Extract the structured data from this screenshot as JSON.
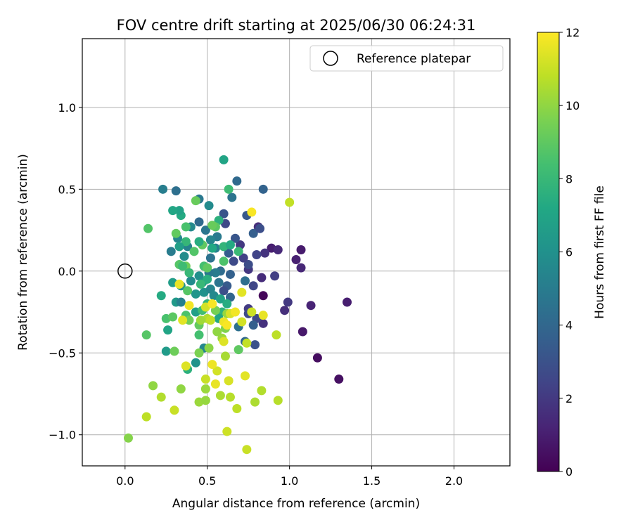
{
  "chart_data": {
    "type": "scatter",
    "title": "FOV centre drift starting at 2025/06/30 06:24:31",
    "xlabel": "Angular distance from reference (arcmin)",
    "ylabel": "Rotation from reference (arcmin)",
    "xlim": [
      -0.26,
      2.34
    ],
    "ylim": [
      -1.19,
      1.42
    ],
    "xticks": [
      0.0,
      0.5,
      1.0,
      1.5,
      2.0
    ],
    "yticks": [
      -1.0,
      -0.5,
      0.0,
      0.5,
      1.0
    ],
    "xtick_labels": [
      "0.0",
      "0.5",
      "1.0",
      "1.5",
      "2.0"
    ],
    "ytick_labels": [
      "−1.0",
      "−0.5",
      "0.0",
      "0.5",
      "1.0"
    ],
    "grid": true,
    "legend": {
      "placement": "upper right",
      "entries": [
        "Reference platepar"
      ]
    },
    "reference_point": {
      "x": 0.0,
      "y": 0.0
    },
    "colorbar": {
      "label": "Hours from first FF file",
      "range": [
        0,
        12
      ],
      "ticks": [
        0,
        2,
        4,
        6,
        8,
        10,
        12
      ],
      "tick_labels": [
        "0",
        "2",
        "4",
        "6",
        "8",
        "10",
        "12"
      ],
      "colormap": "viridis"
    },
    "points": [
      {
        "x": 0.84,
        "y": -0.15,
        "h": 0.2
      },
      {
        "x": 1.17,
        "y": -0.53,
        "h": 0.4
      },
      {
        "x": 1.3,
        "y": -0.66,
        "h": 0.5
      },
      {
        "x": 1.35,
        "y": -0.19,
        "h": 1.0
      },
      {
        "x": 1.08,
        "y": -0.37,
        "h": 0.8
      },
      {
        "x": 1.13,
        "y": -0.21,
        "h": 1.2
      },
      {
        "x": 1.07,
        "y": 0.13,
        "h": 0.9
      },
      {
        "x": 1.04,
        "y": 0.07,
        "h": 1.1
      },
      {
        "x": 1.07,
        "y": 0.02,
        "h": 1.3
      },
      {
        "x": 0.97,
        "y": -0.24,
        "h": 1.6
      },
      {
        "x": 0.99,
        "y": -0.19,
        "h": 2.0
      },
      {
        "x": 0.89,
        "y": 0.14,
        "h": 1.0
      },
      {
        "x": 0.93,
        "y": 0.13,
        "h": 1.4
      },
      {
        "x": 0.85,
        "y": 0.11,
        "h": 1.8
      },
      {
        "x": 0.83,
        "y": -0.04,
        "h": 1.5
      },
      {
        "x": 0.91,
        "y": -0.03,
        "h": 2.2
      },
      {
        "x": 0.81,
        "y": 0.27,
        "h": 1.6
      },
      {
        "x": 0.8,
        "y": 0.1,
        "h": 2.4
      },
      {
        "x": 0.75,
        "y": 0.01,
        "h": 1.9
      },
      {
        "x": 0.75,
        "y": -0.23,
        "h": 2.1
      },
      {
        "x": 0.84,
        "y": -0.32,
        "h": 1.7
      },
      {
        "x": 0.8,
        "y": -0.29,
        "h": 2.6
      },
      {
        "x": 0.79,
        "y": -0.45,
        "h": 3.0
      },
      {
        "x": 0.78,
        "y": -0.09,
        "h": 2.5
      },
      {
        "x": 0.75,
        "y": 0.04,
        "h": 2.8
      },
      {
        "x": 0.72,
        "y": 0.08,
        "h": 2.3
      },
      {
        "x": 0.7,
        "y": 0.16,
        "h": 2.0
      },
      {
        "x": 0.66,
        "y": 0.06,
        "h": 2.7
      },
      {
        "x": 0.67,
        "y": 0.2,
        "h": 3.2
      },
      {
        "x": 0.63,
        "y": 0.11,
        "h": 3.5
      },
      {
        "x": 0.61,
        "y": 0.29,
        "h": 2.6
      },
      {
        "x": 0.6,
        "y": 0.35,
        "h": 3.1
      },
      {
        "x": 0.74,
        "y": 0.34,
        "h": 3.3
      },
      {
        "x": 0.78,
        "y": 0.23,
        "h": 3.6
      },
      {
        "x": 0.82,
        "y": 0.26,
        "h": 2.9
      },
      {
        "x": 0.84,
        "y": 0.5,
        "h": 3.8
      },
      {
        "x": 0.68,
        "y": 0.55,
        "h": 4.1
      },
      {
        "x": 0.65,
        "y": 0.45,
        "h": 4.6
      },
      {
        "x": 0.64,
        "y": -0.02,
        "h": 3.7
      },
      {
        "x": 0.62,
        "y": -0.09,
        "h": 3.4
      },
      {
        "x": 0.6,
        "y": -0.12,
        "h": 2.9
      },
      {
        "x": 0.64,
        "y": -0.16,
        "h": 3.9
      },
      {
        "x": 0.73,
        "y": -0.06,
        "h": 4.3
      },
      {
        "x": 0.75,
        "y": -0.26,
        "h": 2.7
      },
      {
        "x": 0.78,
        "y": -0.33,
        "h": 3.6
      },
      {
        "x": 0.73,
        "y": -0.43,
        "h": 4.0
      },
      {
        "x": 0.69,
        "y": -0.34,
        "h": 4.4
      },
      {
        "x": 0.57,
        "y": -0.07,
        "h": 4.6
      },
      {
        "x": 0.58,
        "y": 0.0,
        "h": 4.2
      },
      {
        "x": 0.55,
        "y": -0.01,
        "h": 5.0
      },
      {
        "x": 0.51,
        "y": -0.01,
        "h": 4.8
      },
      {
        "x": 0.52,
        "y": 0.08,
        "h": 4.5
      },
      {
        "x": 0.55,
        "y": 0.14,
        "h": 5.2
      },
      {
        "x": 0.56,
        "y": 0.21,
        "h": 4.9
      },
      {
        "x": 0.52,
        "y": 0.19,
        "h": 5.4
      },
      {
        "x": 0.49,
        "y": 0.25,
        "h": 4.7
      },
      {
        "x": 0.45,
        "y": 0.3,
        "h": 4.1
      },
      {
        "x": 0.4,
        "y": 0.27,
        "h": 5.6
      },
      {
        "x": 0.38,
        "y": 0.15,
        "h": 5.3
      },
      {
        "x": 0.36,
        "y": 0.09,
        "h": 5.8
      },
      {
        "x": 0.28,
        "y": 0.12,
        "h": 5.0
      },
      {
        "x": 0.32,
        "y": 0.2,
        "h": 5.5
      },
      {
        "x": 0.31,
        "y": 0.49,
        "h": 4.4
      },
      {
        "x": 0.23,
        "y": 0.5,
        "h": 5.1
      },
      {
        "x": 0.45,
        "y": 0.44,
        "h": 4.8
      },
      {
        "x": 0.51,
        "y": 0.4,
        "h": 5.7
      },
      {
        "x": 0.6,
        "y": 0.68,
        "h": 7.0
      },
      {
        "x": 0.63,
        "y": 0.5,
        "h": 8.2
      },
      {
        "x": 0.45,
        "y": -0.03,
        "h": 5.9
      },
      {
        "x": 0.47,
        "y": -0.07,
        "h": 6.3
      },
      {
        "x": 0.48,
        "y": -0.13,
        "h": 6.0
      },
      {
        "x": 0.52,
        "y": -0.11,
        "h": 5.4
      },
      {
        "x": 0.54,
        "y": -0.15,
        "h": 5.6
      },
      {
        "x": 0.43,
        "y": -0.14,
        "h": 6.2
      },
      {
        "x": 0.4,
        "y": -0.06,
        "h": 5.7
      },
      {
        "x": 0.34,
        "y": -0.09,
        "h": 6.1
      },
      {
        "x": 0.29,
        "y": -0.07,
        "h": 6.6
      },
      {
        "x": 0.31,
        "y": -0.19,
        "h": 6.4
      },
      {
        "x": 0.34,
        "y": -0.19,
        "h": 5.2
      },
      {
        "x": 0.43,
        "y": -0.25,
        "h": 6.8
      },
      {
        "x": 0.48,
        "y": -0.47,
        "h": 5.5
      },
      {
        "x": 0.43,
        "y": -0.56,
        "h": 6.1
      },
      {
        "x": 0.25,
        "y": -0.49,
        "h": 6.5
      },
      {
        "x": 0.26,
        "y": -0.36,
        "h": 7.0
      },
      {
        "x": 0.22,
        "y": -0.15,
        "h": 7.3
      },
      {
        "x": 0.38,
        "y": -0.6,
        "h": 7.6
      },
      {
        "x": 0.58,
        "y": -0.17,
        "h": 6.9
      },
      {
        "x": 0.62,
        "y": -0.2,
        "h": 7.4
      },
      {
        "x": 0.59,
        "y": -0.25,
        "h": 7.7
      },
      {
        "x": 0.57,
        "y": -0.29,
        "h": 7.1
      },
      {
        "x": 0.5,
        "y": -0.2,
        "h": 7.9
      },
      {
        "x": 0.47,
        "y": -0.24,
        "h": 8.3
      },
      {
        "x": 0.5,
        "y": -0.05,
        "h": 7.5
      },
      {
        "x": 0.46,
        "y": -0.08,
        "h": 8.0
      },
      {
        "x": 0.48,
        "y": 0.03,
        "h": 8.4
      },
      {
        "x": 0.5,
        "y": 0.02,
        "h": 9.0
      },
      {
        "x": 0.53,
        "y": 0.14,
        "h": 7.2
      },
      {
        "x": 0.57,
        "y": 0.31,
        "h": 7.6
      },
      {
        "x": 0.6,
        "y": 0.15,
        "h": 7.8
      },
      {
        "x": 0.64,
        "y": 0.16,
        "h": 7.3
      },
      {
        "x": 0.69,
        "y": 0.12,
        "h": 8.1
      },
      {
        "x": 0.6,
        "y": 0.06,
        "h": 8.6
      },
      {
        "x": 0.55,
        "y": 0.27,
        "h": 8.9
      },
      {
        "x": 0.53,
        "y": 0.28,
        "h": 9.2
      },
      {
        "x": 0.47,
        "y": 0.16,
        "h": 9.0
      },
      {
        "x": 0.42,
        "y": 0.12,
        "h": 8.7
      },
      {
        "x": 0.45,
        "y": 0.18,
        "h": 7.4
      },
      {
        "x": 0.37,
        "y": 0.27,
        "h": 8.5
      },
      {
        "x": 0.37,
        "y": 0.18,
        "h": 7.9
      },
      {
        "x": 0.33,
        "y": 0.15,
        "h": 6.7
      },
      {
        "x": 0.34,
        "y": 0.34,
        "h": 7.3
      },
      {
        "x": 0.33,
        "y": 0.37,
        "h": 6.9
      },
      {
        "x": 0.29,
        "y": 0.37,
        "h": 7.1
      },
      {
        "x": 0.31,
        "y": 0.23,
        "h": 9.1
      },
      {
        "x": 0.33,
        "y": 0.04,
        "h": 8.8
      },
      {
        "x": 0.37,
        "y": 0.03,
        "h": 9.3
      },
      {
        "x": 0.35,
        "y": 0.03,
        "h": 8.2
      },
      {
        "x": 0.39,
        "y": -0.01,
        "h": 8.0
      },
      {
        "x": 0.38,
        "y": -0.12,
        "h": 8.8
      },
      {
        "x": 0.37,
        "y": -0.27,
        "h": 8.6
      },
      {
        "x": 0.39,
        "y": -0.3,
        "h": 9.4
      },
      {
        "x": 0.43,
        "y": 0.43,
        "h": 9.2
      },
      {
        "x": 0.14,
        "y": 0.26,
        "h": 8.7
      },
      {
        "x": 0.25,
        "y": -0.29,
        "h": 8.5
      },
      {
        "x": 0.29,
        "y": -0.28,
        "h": 8.9
      },
      {
        "x": 0.3,
        "y": -0.49,
        "h": 9.3
      },
      {
        "x": 0.13,
        "y": -0.39,
        "h": 8.8
      },
      {
        "x": 0.45,
        "y": -0.39,
        "h": 8.4
      },
      {
        "x": 0.45,
        "y": -0.33,
        "h": 9.1
      },
      {
        "x": 0.45,
        "y": -0.5,
        "h": 9.6
      },
      {
        "x": 0.51,
        "y": -0.47,
        "h": 9.9
      },
      {
        "x": 0.61,
        "y": -0.35,
        "h": 9.7
      },
      {
        "x": 0.69,
        "y": -0.48,
        "h": 9.0
      },
      {
        "x": 0.55,
        "y": -0.24,
        "h": 9.5
      },
      {
        "x": 0.62,
        "y": -0.26,
        "h": 10.1
      },
      {
        "x": 0.59,
        "y": -0.41,
        "h": 10.2
      },
      {
        "x": 0.61,
        "y": -0.52,
        "h": 10.4
      },
      {
        "x": 0.5,
        "y": -0.29,
        "h": 10.6
      },
      {
        "x": 0.45,
        "y": -0.8,
        "h": 10.2
      },
      {
        "x": 0.34,
        "y": -0.72,
        "h": 10.0
      },
      {
        "x": 0.17,
        "y": -0.7,
        "h": 10.0
      },
      {
        "x": 0.02,
        "y": -1.02,
        "h": 9.8
      },
      {
        "x": 0.22,
        "y": -0.77,
        "h": 10.6
      },
      {
        "x": 0.13,
        "y": -0.89,
        "h": 10.8
      },
      {
        "x": 0.49,
        "y": -0.72,
        "h": 10.2
      },
      {
        "x": 0.49,
        "y": -0.79,
        "h": 10.1
      },
      {
        "x": 0.58,
        "y": -0.76,
        "h": 10.5
      },
      {
        "x": 0.64,
        "y": -0.77,
        "h": 10.7
      },
      {
        "x": 0.68,
        "y": -0.84,
        "h": 10.8
      },
      {
        "x": 0.79,
        "y": -0.8,
        "h": 10.5
      },
      {
        "x": 0.83,
        "y": -0.73,
        "h": 10.6
      },
      {
        "x": 0.93,
        "y": -0.79,
        "h": 10.7
      },
      {
        "x": 0.3,
        "y": -0.85,
        "h": 11.0
      },
      {
        "x": 0.62,
        "y": -0.98,
        "h": 11.1
      },
      {
        "x": 0.74,
        "y": -1.09,
        "h": 11.0
      },
      {
        "x": 0.92,
        "y": -0.39,
        "h": 10.8
      },
      {
        "x": 0.74,
        "y": -0.44,
        "h": 10.9
      },
      {
        "x": 0.73,
        "y": -0.64,
        "h": 11.5
      },
      {
        "x": 0.63,
        "y": -0.67,
        "h": 11.3
      },
      {
        "x": 0.55,
        "y": -0.69,
        "h": 11.6
      },
      {
        "x": 0.56,
        "y": -0.61,
        "h": 11.2
      },
      {
        "x": 0.53,
        "y": -0.57,
        "h": 11.7
      },
      {
        "x": 0.49,
        "y": -0.66,
        "h": 11.0
      },
      {
        "x": 0.37,
        "y": -0.58,
        "h": 11.4
      },
      {
        "x": 0.35,
        "y": -0.3,
        "h": 11.5
      },
      {
        "x": 0.39,
        "y": -0.21,
        "h": 11.8
      },
      {
        "x": 0.33,
        "y": -0.08,
        "h": 11.6
      },
      {
        "x": 0.49,
        "y": -0.22,
        "h": 11.2
      },
      {
        "x": 0.52,
        "y": -0.3,
        "h": 10.9
      },
      {
        "x": 0.53,
        "y": -0.2,
        "h": 11.9
      },
      {
        "x": 0.6,
        "y": -0.31,
        "h": 11.7
      },
      {
        "x": 0.6,
        "y": -0.43,
        "h": 11.4
      },
      {
        "x": 0.62,
        "y": -0.33,
        "h": 11.9
      },
      {
        "x": 0.64,
        "y": -0.26,
        "h": 11.3
      },
      {
        "x": 0.67,
        "y": -0.25,
        "h": 11.8
      },
      {
        "x": 0.71,
        "y": -0.31,
        "h": 11.2
      },
      {
        "x": 0.71,
        "y": -0.13,
        "h": 11.5
      },
      {
        "x": 0.77,
        "y": -0.25,
        "h": 11.1
      },
      {
        "x": 0.84,
        "y": -0.27,
        "h": 11.6
      },
      {
        "x": 0.77,
        "y": 0.36,
        "h": 11.9
      },
      {
        "x": 1.0,
        "y": 0.42,
        "h": 10.9
      },
      {
        "x": 0.56,
        "y": -0.37,
        "h": 10.0
      },
      {
        "x": 0.46,
        "y": -0.3,
        "h": 10.3
      }
    ]
  }
}
